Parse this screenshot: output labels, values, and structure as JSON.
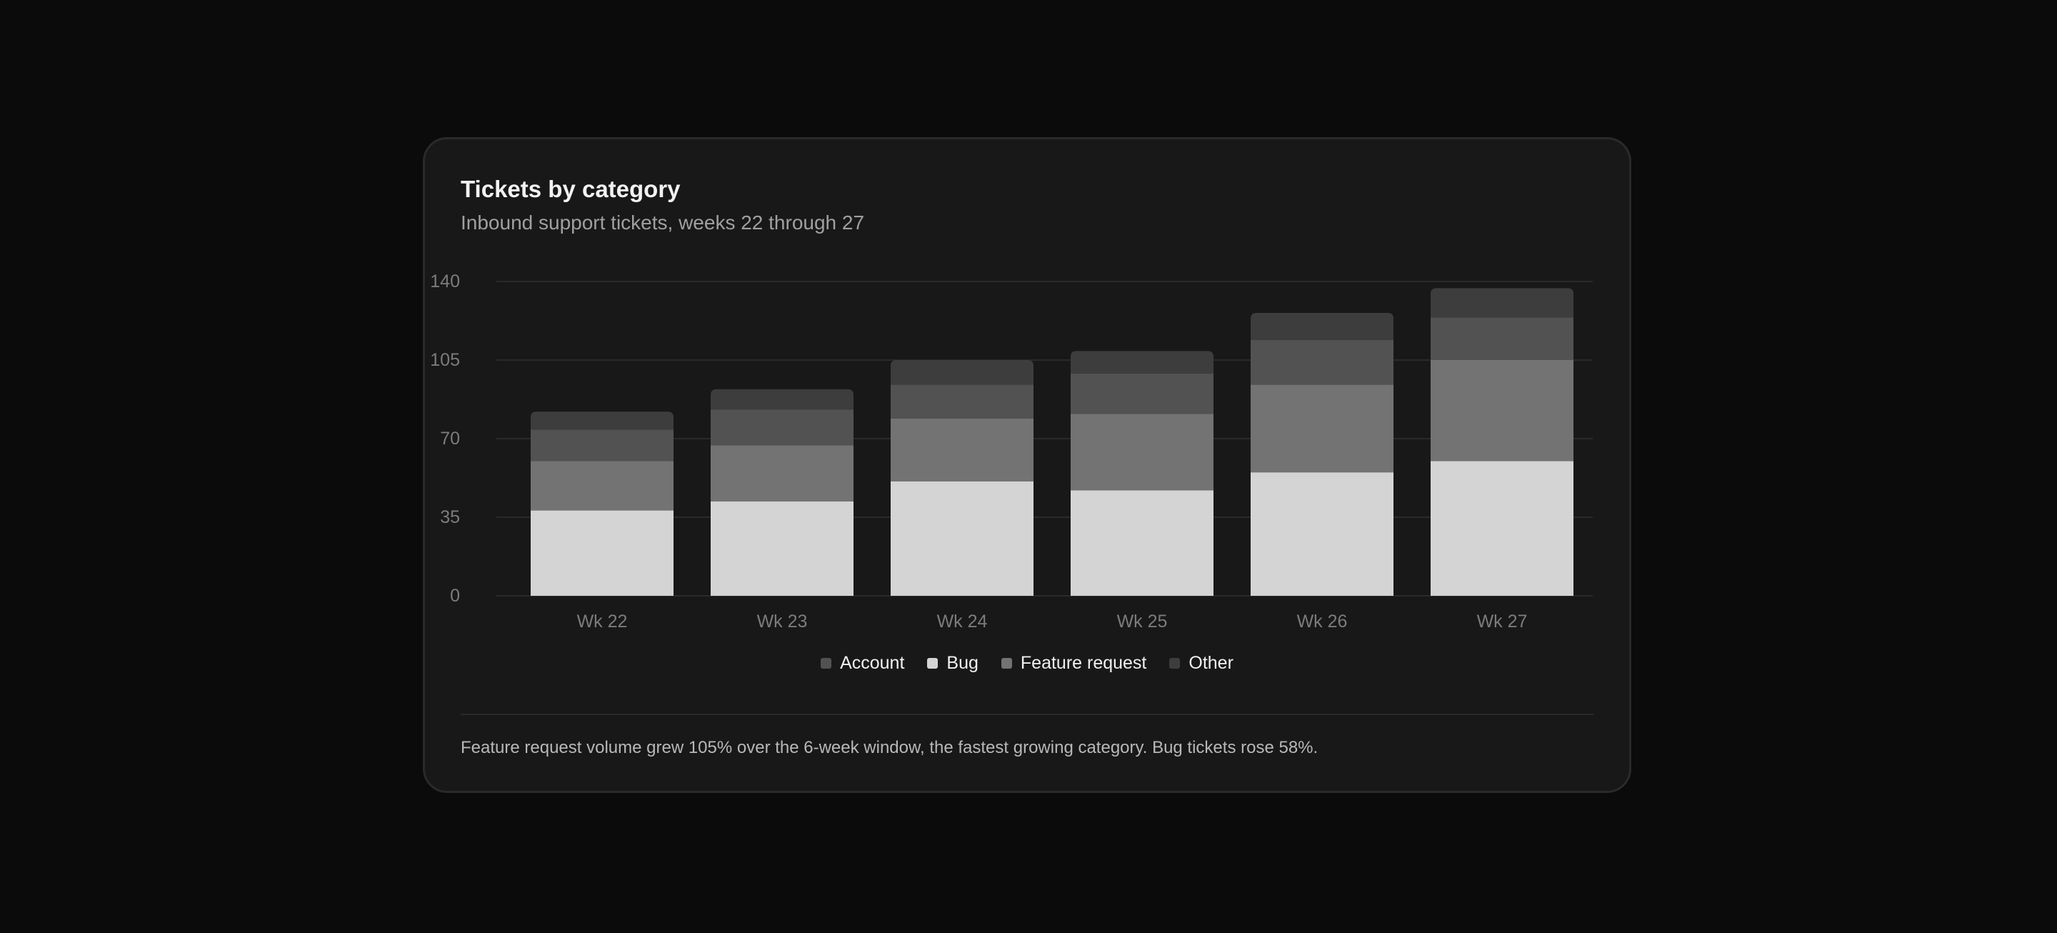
{
  "card": {
    "title": "Tickets by category",
    "subtitle": "Inbound support tickets, weeks 22 through 27",
    "footnote": "Feature request volume grew 105% over the 6-week window, the fastest growing category. Bug tickets rose 58%."
  },
  "colors": {
    "Bug": "#d4d4d4",
    "Feature request": "#737373",
    "Account": "#525252",
    "Other": "#3d3d3d",
    "background": "#0b0b0b",
    "card": "#181818",
    "grid": "#2a2a2a"
  },
  "legend": [
    {
      "label": "Account",
      "color": "#525252"
    },
    {
      "label": "Bug",
      "color": "#d4d4d4"
    },
    {
      "label": "Feature request",
      "color": "#737373"
    },
    {
      "label": "Other",
      "color": "#3d3d3d"
    }
  ],
  "chart_data": {
    "type": "bar",
    "stacked": true,
    "title": "Tickets by category",
    "subtitle": "Inbound support tickets, weeks 22 through 27",
    "categories": [
      "Wk 22",
      "Wk 23",
      "Wk 24",
      "Wk 25",
      "Wk 26",
      "Wk 27"
    ],
    "series": [
      {
        "name": "Bug",
        "values": [
          38,
          42,
          51,
          47,
          55,
          60
        ]
      },
      {
        "name": "Feature request",
        "values": [
          22,
          25,
          28,
          34,
          39,
          45
        ]
      },
      {
        "name": "Account",
        "values": [
          14,
          16,
          15,
          18,
          20,
          19
        ]
      },
      {
        "name": "Other",
        "values": [
          8,
          9,
          11,
          10,
          12,
          13
        ]
      }
    ],
    "yticks": [
      0,
      35,
      70,
      105,
      140
    ],
    "ylim": [
      0,
      140
    ],
    "grid": true,
    "legend_position": "bottom-center"
  }
}
